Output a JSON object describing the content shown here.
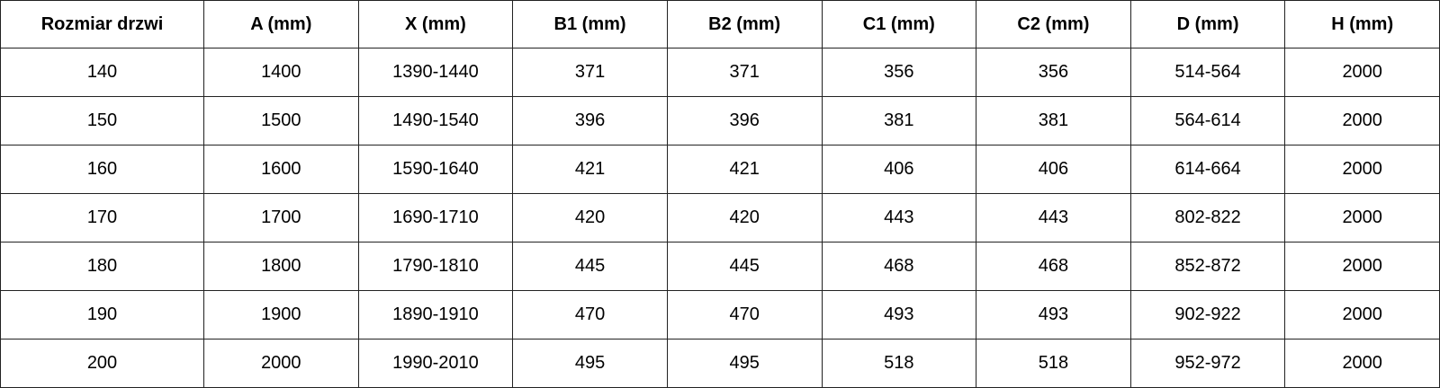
{
  "table": {
    "headers": [
      "Rozmiar drzwi",
      "A (mm)",
      "X (mm)",
      "B1 (mm)",
      "B2 (mm)",
      "C1 (mm)",
      "C2 (mm)",
      "D (mm)",
      "H (mm)"
    ],
    "rows": [
      [
        "140",
        "1400",
        "1390-1440",
        "371",
        "371",
        "356",
        "356",
        "514-564",
        "2000"
      ],
      [
        "150",
        "1500",
        "1490-1540",
        "396",
        "396",
        "381",
        "381",
        "564-614",
        "2000"
      ],
      [
        "160",
        "1600",
        "1590-1640",
        "421",
        "421",
        "406",
        "406",
        "614-664",
        "2000"
      ],
      [
        "170",
        "1700",
        "1690-1710",
        "420",
        "420",
        "443",
        "443",
        "802-822",
        "2000"
      ],
      [
        "180",
        "1800",
        "1790-1810",
        "445",
        "445",
        "468",
        "468",
        "852-872",
        "2000"
      ],
      [
        "190",
        "1900",
        "1890-1910",
        "470",
        "470",
        "493",
        "493",
        "902-922",
        "2000"
      ],
      [
        "200",
        "2000",
        "1990-2010",
        "495",
        "495",
        "518",
        "518",
        "952-972",
        "2000"
      ]
    ]
  }
}
